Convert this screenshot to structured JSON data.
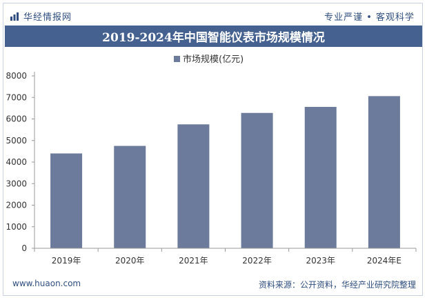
{
  "header": {
    "brand": "华经情报网",
    "slogan": "专业严谨 • 客观科学"
  },
  "footer": {
    "website": "www.huaon.com",
    "source": "资料来源：公开资料，华经产业研究院整理"
  },
  "colors": {
    "bar": "#6c7b9c",
    "title_bg": "#44618f",
    "text": "#2f4e7f"
  },
  "chart_data": {
    "type": "bar",
    "title": "2019-2024年中国智能仪表市场规模情况",
    "legend_position": "top",
    "categories": [
      "2019年",
      "2020年",
      "2021年",
      "2022年",
      "2023年",
      "2024年E"
    ],
    "series": [
      {
        "name": "市场规模(亿元)",
        "values": [
          4400,
          4750,
          5750,
          6280,
          6560,
          7060
        ]
      }
    ],
    "ylim": [
      0,
      8000
    ],
    "yticks": [
      "0",
      "1000",
      "2000",
      "3000",
      "4000",
      "5000",
      "6000",
      "7000",
      "8000"
    ],
    "grid": false
  }
}
